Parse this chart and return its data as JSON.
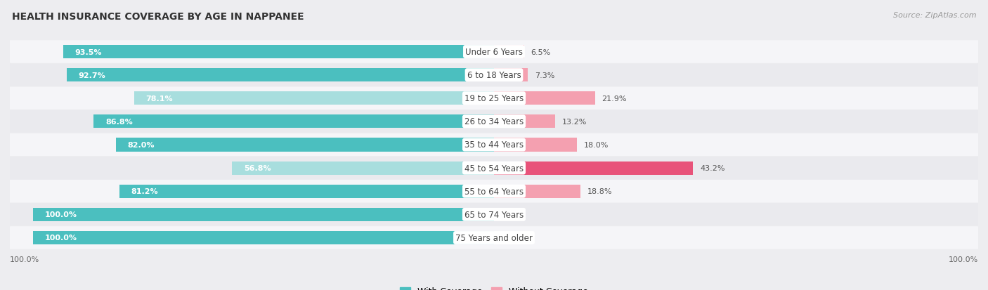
{
  "title": "HEALTH INSURANCE COVERAGE BY AGE IN NAPPANEE",
  "source": "Source: ZipAtlas.com",
  "categories": [
    "Under 6 Years",
    "6 to 18 Years",
    "19 to 25 Years",
    "26 to 34 Years",
    "35 to 44 Years",
    "45 to 54 Years",
    "55 to 64 Years",
    "65 to 74 Years",
    "75 Years and older"
  ],
  "with_coverage": [
    93.5,
    92.7,
    78.1,
    86.8,
    82.0,
    56.8,
    81.2,
    100.0,
    100.0
  ],
  "without_coverage": [
    6.5,
    7.3,
    21.9,
    13.2,
    18.0,
    43.2,
    18.8,
    0.0,
    0.0
  ],
  "color_with": "#4BBFBF",
  "color_with_light": "#A8DEDE",
  "color_without": "#F4A0B0",
  "color_without_large": "#E8537A",
  "color_without_zero": "#F0C8D0",
  "bg_color": "#EDEDF0",
  "row_bg_color": "#F5F5F8",
  "row_bg_color2": "#EAEAEE",
  "title_fontsize": 10,
  "source_fontsize": 8,
  "label_fontsize": 8.5,
  "value_fontsize": 8,
  "legend_fontsize": 9,
  "axis_label_fontsize": 8
}
